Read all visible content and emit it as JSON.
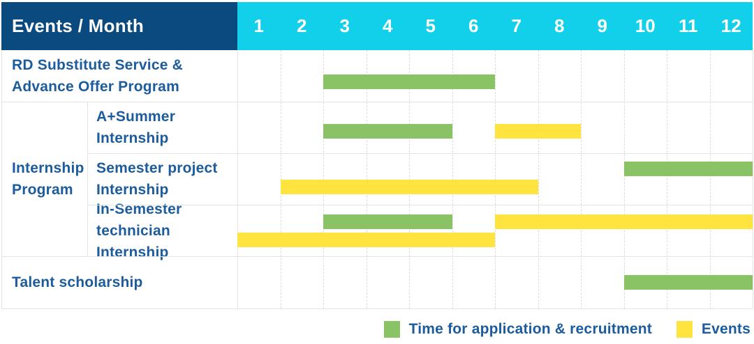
{
  "title_cell": "Events / Month",
  "months": [
    "1",
    "2",
    "3",
    "4",
    "5",
    "6",
    "7",
    "8",
    "9",
    "10",
    "11",
    "12"
  ],
  "labels": {
    "row1": "RD Substitute Service &\nAdvance Offer Program",
    "group": "Internship\nProgram",
    "row2": "A+Summer\nInternship",
    "row3": "Semester project\nInternship",
    "row4": "In-Semester\ntechnician Internship",
    "row5": "Talent scholarship"
  },
  "legend": {
    "application_label": "Time for application & recruitment",
    "events_label": "Events"
  },
  "colors": {
    "header_navy": "#0A4A7F",
    "header_cyan": "#12D0EA",
    "bar_green": "#89C365",
    "bar_yellow": "#FFE33E",
    "text_blue": "#1C5C9D",
    "grid_line": "#E3E3E3"
  },
  "chart_data": {
    "type": "gantt",
    "unit": "month",
    "x_domain": [
      1,
      12
    ],
    "x_ticks": [
      1,
      2,
      3,
      4,
      5,
      6,
      7,
      8,
      9,
      10,
      11,
      12
    ],
    "legend": [
      {
        "name": "Time for application & recruitment",
        "color": "#89C365",
        "kind": "application"
      },
      {
        "name": "Events",
        "color": "#FFE33E",
        "kind": "event"
      }
    ],
    "rows": [
      {
        "group": null,
        "label": "RD Substitute Service & Advance Offer Program",
        "segments": [
          {
            "kind": "application",
            "start_month": 3,
            "end_month": 6,
            "lane": 0
          }
        ]
      },
      {
        "group": "Internship Program",
        "label": "A+Summer Internship",
        "segments": [
          {
            "kind": "application",
            "start_month": 3,
            "end_month": 5,
            "lane": 0
          },
          {
            "kind": "event",
            "start_month": 7,
            "end_month": 8,
            "lane": 0
          }
        ]
      },
      {
        "group": "Internship Program",
        "label": "Semester project Internship",
        "segments": [
          {
            "kind": "application",
            "start_month": 10,
            "end_month": 12,
            "lane": 0
          },
          {
            "kind": "event",
            "start_month": 2,
            "end_month": 7,
            "lane": 1
          }
        ]
      },
      {
        "group": "Internship Program",
        "label": "In-Semester technician Internship",
        "segments": [
          {
            "kind": "application",
            "start_month": 3,
            "end_month": 5,
            "lane": 0
          },
          {
            "kind": "event",
            "start_month": 7,
            "end_month": 12,
            "lane": 0
          },
          {
            "kind": "event",
            "start_month": 1,
            "end_month": 6,
            "lane": 1
          }
        ]
      },
      {
        "group": null,
        "label": "Talent scholarship",
        "segments": [
          {
            "kind": "application",
            "start_month": 10,
            "end_month": 12,
            "lane": 0
          }
        ]
      }
    ]
  }
}
